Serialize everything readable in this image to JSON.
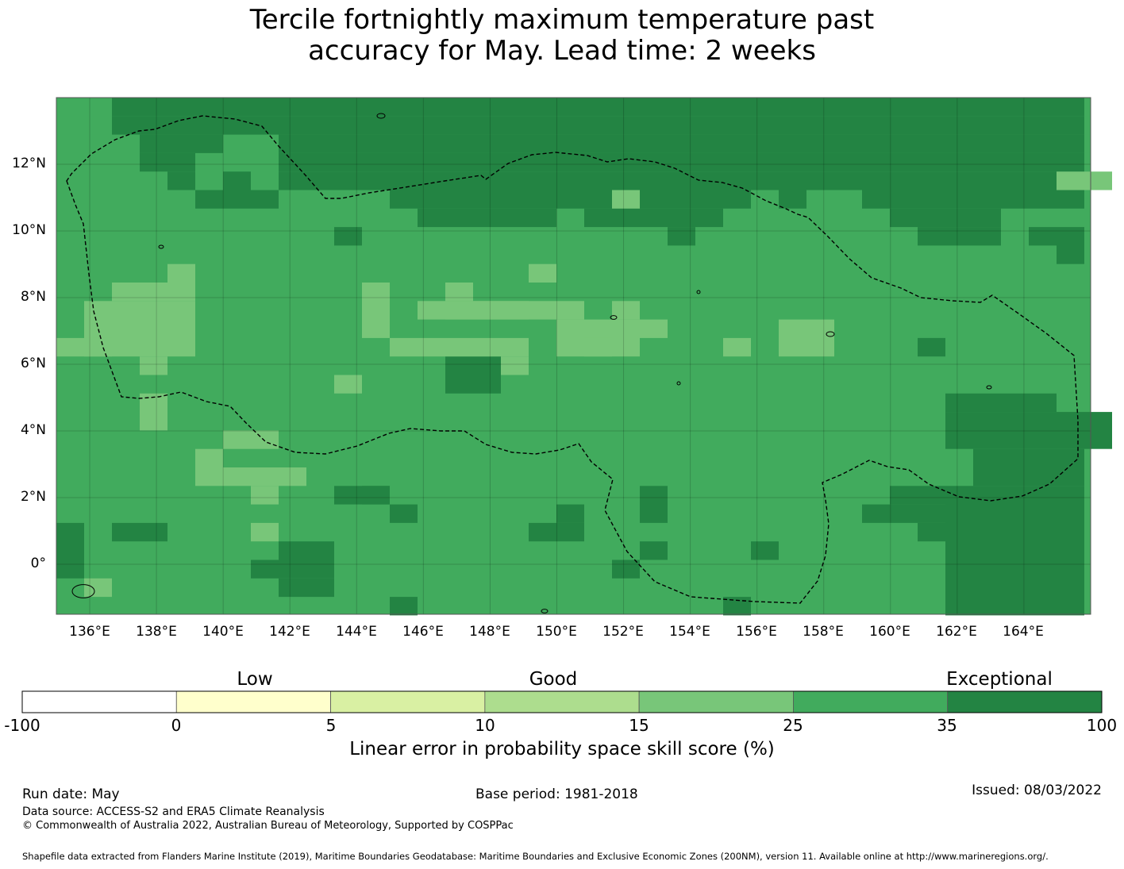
{
  "title": {
    "line1": "Tercile fortnightly maximum temperature past",
    "line2": "accuracy for May. Lead time: 2 weeks"
  },
  "map": {
    "lon_range": [
      135,
      166
    ],
    "lat_range": [
      -1.5,
      14
    ],
    "lon_ticks": [
      "136°E",
      "138°E",
      "140°E",
      "142°E",
      "144°E",
      "146°E",
      "148°E",
      "150°E",
      "152°E",
      "154°E",
      "156°E",
      "158°E",
      "160°E",
      "162°E",
      "164°E"
    ],
    "lat_ticks": [
      "12°N",
      "10°N",
      "8°N",
      "6°N",
      "4°N",
      "2°N",
      "0°"
    ],
    "grid": true,
    "eez_boundary": "dashed",
    "colors": {
      "class_0_5": "#ffffcc",
      "class_5_10": "#d9f0a3",
      "class_10_15": "#addd8e",
      "class_15_25": "#78c679",
      "class_25_35": "#41ab5d",
      "class_35_100": "#238443",
      "boundary": "#000000"
    }
  },
  "legend": {
    "categories": [
      "Low",
      "Good",
      "Exceptional"
    ],
    "ticks": [
      "-100",
      "0",
      "5",
      "10",
      "15",
      "25",
      "35",
      "100"
    ],
    "colors": [
      "#ffffff",
      "#ffffcc",
      "#d9f0a3",
      "#addd8e",
      "#78c679",
      "#41ab5d",
      "#238443"
    ],
    "label": "Linear error in probability space skill score (%)"
  },
  "footer": {
    "run_date": "Run date: May",
    "base_period": "Base period: 1981-2018",
    "issued": "Issued: 08/03/2022",
    "data_source": "Data source: ACCESS-S2 and ERA5 Climate Reanalysis",
    "copyright": "© Commonwealth of Australia 2022, Australian Bureau of Meteorology, Supported by COSPPac",
    "shapefile": "Shapefile data extracted from Flanders Marine Institute (2019), Maritime Boundaries Geodatabase: Maritime Boundaries and Exclusive Economic Zones (200NM), version 11. Available online at http://www.marineregions.org/."
  }
}
